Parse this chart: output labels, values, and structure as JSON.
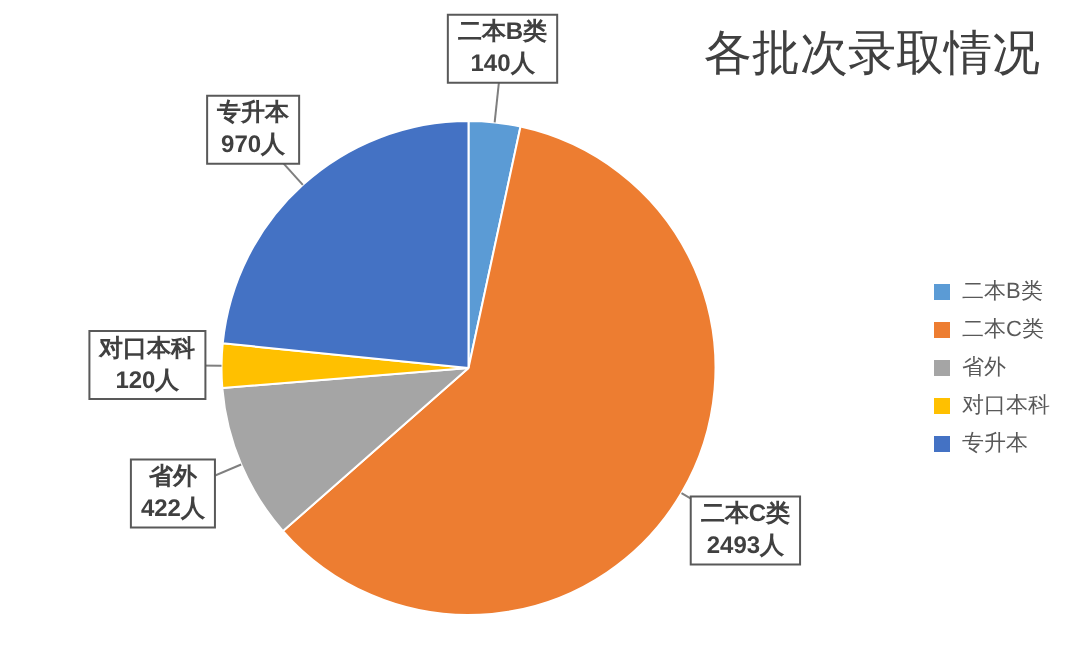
{
  "chart_data": {
    "type": "pie",
    "title": "各批次录取情况",
    "categories": [
      "二本B类",
      "二本C类",
      "省外",
      "对口本科",
      "专升本"
    ],
    "values": [
      140,
      2493,
      422,
      120,
      970
    ],
    "value_labels": [
      "140人",
      "2493人",
      "422人",
      "120人",
      "970人"
    ],
    "colors": [
      "#5b9bd5",
      "#ed7d31",
      "#a5a5a5",
      "#ffc000",
      "#4472c4"
    ],
    "legend": "right"
  }
}
